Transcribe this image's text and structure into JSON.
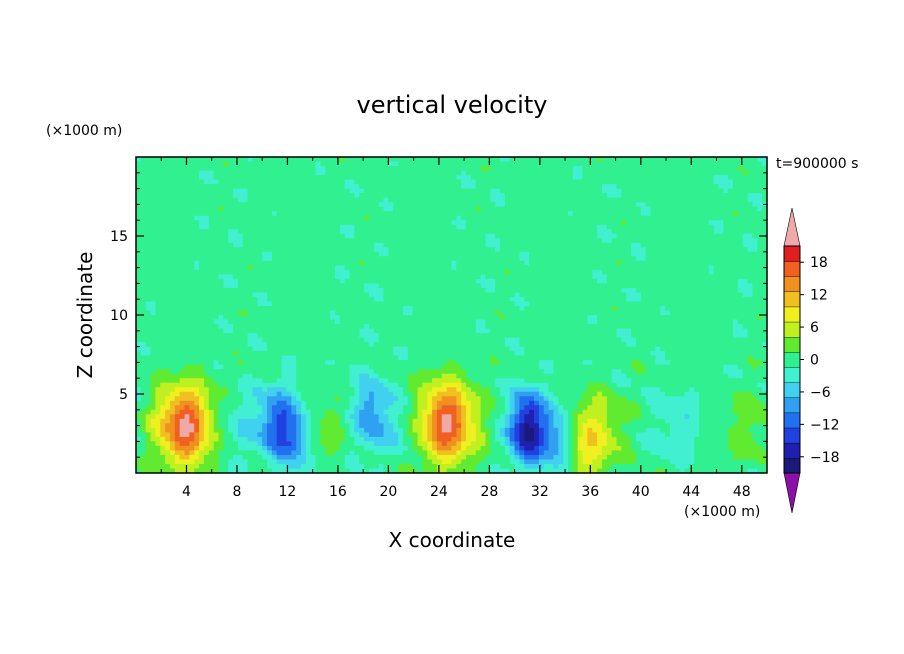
{
  "chart_data": {
    "type": "heatmap",
    "title": "vertical velocity",
    "xlabel": "X coordinate",
    "ylabel": "Z coordinate",
    "x_unit": "(×1000 m)",
    "y_unit": "(×1000 m)",
    "time_label": "t=900000 s",
    "xlim": [
      0,
      50
    ],
    "ylim": [
      0,
      20
    ],
    "x_ticks": [
      4,
      8,
      12,
      16,
      20,
      24,
      28,
      32,
      36,
      40,
      44,
      48
    ],
    "y_ticks": [
      5,
      10,
      15
    ],
    "colorbar": {
      "levels": [
        -21,
        -18,
        -15,
        -12,
        -9,
        -6,
        -3,
        0,
        3,
        6,
        9,
        12,
        15,
        18,
        21
      ],
      "tick_labels": [
        18,
        12,
        6,
        0,
        -6,
        -12,
        -18
      ],
      "colors": [
        "#1a1a7a",
        "#2020b0",
        "#2040e0",
        "#2070f0",
        "#30a0f0",
        "#40d0f0",
        "#40f0d0",
        "#30f090",
        "#60ea30",
        "#c0f020",
        "#f0f020",
        "#f0c020",
        "#f09020",
        "#f06020",
        "#e02020"
      ],
      "under_color": "#8a10a8",
      "over_color": "#f0a8a8"
    },
    "features": [
      {
        "kind": "updraft",
        "x": 4.0,
        "z": 3.0,
        "peak": 18
      },
      {
        "kind": "downdraft",
        "x": 11.0,
        "z": 3.2,
        "peak": -10
      },
      {
        "kind": "downdraft",
        "x": 12.5,
        "z": 2.5,
        "peak": -12
      },
      {
        "kind": "downdraft",
        "x": 18.5,
        "z": 4.0,
        "peak": -8
      },
      {
        "kind": "updraft",
        "x": 24.5,
        "z": 3.2,
        "peak": 18
      },
      {
        "kind": "downdraft",
        "x": 31.0,
        "z": 2.8,
        "peak": -18
      },
      {
        "kind": "downdraft",
        "x": 33.5,
        "z": 2.0,
        "peak": -10
      },
      {
        "kind": "updraft",
        "x": 35.5,
        "z": 1.8,
        "peak": 9
      }
    ]
  }
}
